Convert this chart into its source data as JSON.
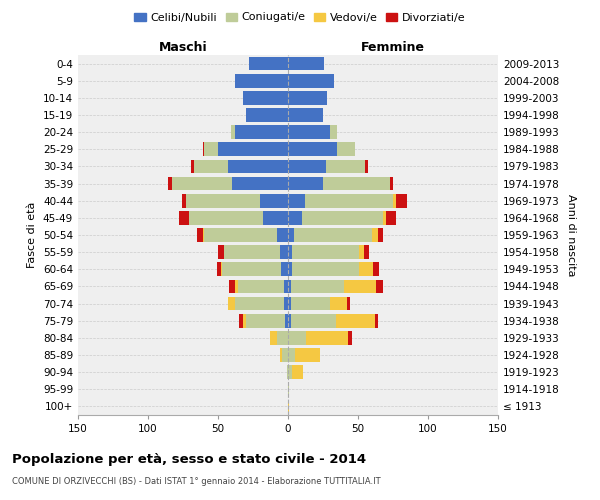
{
  "age_groups": [
    "100+",
    "95-99",
    "90-94",
    "85-89",
    "80-84",
    "75-79",
    "70-74",
    "65-69",
    "60-64",
    "55-59",
    "50-54",
    "45-49",
    "40-44",
    "35-39",
    "30-34",
    "25-29",
    "20-24",
    "15-19",
    "10-14",
    "5-9",
    "0-4"
  ],
  "birth_years": [
    "≤ 1913",
    "1914-1918",
    "1919-1923",
    "1924-1928",
    "1929-1933",
    "1934-1938",
    "1939-1943",
    "1944-1948",
    "1949-1953",
    "1954-1958",
    "1959-1963",
    "1964-1968",
    "1969-1973",
    "1974-1978",
    "1979-1983",
    "1984-1988",
    "1989-1993",
    "1994-1998",
    "1999-2003",
    "2004-2008",
    "2009-2013"
  ],
  "males": {
    "celibe": [
      0,
      0,
      0,
      0,
      0,
      2,
      3,
      3,
      5,
      6,
      8,
      18,
      20,
      40,
      43,
      50,
      38,
      30,
      32,
      38,
      28
    ],
    "coniugato": [
      0,
      0,
      1,
      4,
      8,
      28,
      35,
      33,
      42,
      40,
      52,
      53,
      53,
      43,
      24,
      10,
      3,
      0,
      0,
      0,
      0
    ],
    "vedovo": [
      0,
      0,
      0,
      2,
      5,
      2,
      5,
      2,
      1,
      0,
      1,
      0,
      0,
      0,
      0,
      0,
      0,
      0,
      0,
      0,
      0
    ],
    "divorziato": [
      0,
      0,
      0,
      0,
      0,
      3,
      0,
      4,
      3,
      4,
      4,
      7,
      3,
      3,
      2,
      1,
      0,
      0,
      0,
      0,
      0
    ]
  },
  "females": {
    "nubile": [
      0,
      0,
      0,
      0,
      0,
      2,
      2,
      2,
      3,
      3,
      4,
      10,
      12,
      25,
      27,
      35,
      30,
      25,
      28,
      33,
      26
    ],
    "coniugata": [
      0,
      1,
      3,
      5,
      13,
      32,
      28,
      38,
      48,
      48,
      56,
      58,
      63,
      48,
      28,
      13,
      5,
      0,
      0,
      0,
      0
    ],
    "vedova": [
      1,
      0,
      8,
      18,
      30,
      28,
      12,
      23,
      10,
      3,
      4,
      2,
      2,
      0,
      0,
      0,
      0,
      0,
      0,
      0,
      0
    ],
    "divorziata": [
      0,
      0,
      0,
      0,
      3,
      2,
      2,
      5,
      4,
      4,
      4,
      7,
      8,
      2,
      2,
      0,
      0,
      0,
      0,
      0,
      0
    ]
  },
  "colors": {
    "celibe": "#4472c4",
    "coniugato": "#bfcc99",
    "vedovo": "#f5c842",
    "divorziato": "#cc1111"
  },
  "title": "Popolazione per età, sesso e stato civile - 2014",
  "subtitle": "COMUNE DI ORZIVECCHI (BS) - Dati ISTAT 1° gennaio 2014 - Elaborazione TUTTITALIA.IT",
  "xlabel_left": "Maschi",
  "xlabel_right": "Femmine",
  "ylabel_left": "Fasce di età",
  "ylabel_right": "Anni di nascita",
  "xlim": 150,
  "bg_color": "#efefef",
  "legend_labels": [
    "Celibi/Nubili",
    "Coniugati/e",
    "Vedovi/e",
    "Divorziati/e"
  ]
}
